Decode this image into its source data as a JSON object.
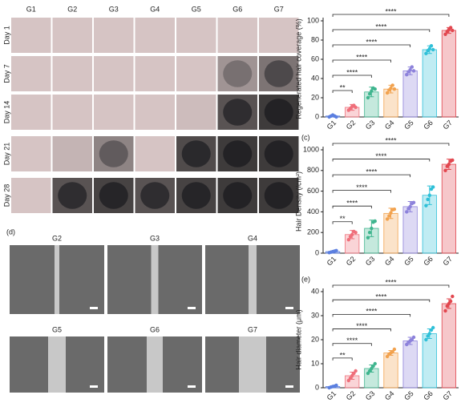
{
  "photo_grid": {
    "columns": [
      "G1",
      "G2",
      "G3",
      "G4",
      "G5",
      "G6",
      "G7"
    ],
    "rows": [
      "Day 1",
      "Day 7",
      "Day 14",
      "Day 21",
      "Day 28"
    ]
  },
  "sem_panel": {
    "label": "(d)",
    "images": [
      "G2",
      "G3",
      "G4",
      "G5",
      "G6",
      "G7"
    ]
  },
  "chart_data": [
    {
      "type": "bar",
      "ylabel": "Regenerated hair coverage (%)",
      "categories": [
        "G1",
        "G2",
        "G3",
        "G4",
        "G5",
        "G6",
        "G7"
      ],
      "values": [
        1,
        10,
        26,
        29,
        48,
        70,
        90
      ],
      "errors": [
        1,
        3,
        5,
        4,
        4,
        4,
        3
      ],
      "points": [
        [
          0,
          1,
          2,
          1,
          0
        ],
        [
          7,
          9,
          11,
          12,
          10
        ],
        [
          20,
          24,
          27,
          30,
          29
        ],
        [
          25,
          28,
          30,
          33,
          29
        ],
        [
          44,
          47,
          49,
          52,
          48
        ],
        [
          66,
          69,
          71,
          74,
          70
        ],
        [
          86,
          89,
          91,
          93,
          90
        ]
      ],
      "colors": [
        "#5b7fe0",
        "#ef6f7a",
        "#3fb58e",
        "#f2a24e",
        "#8d82db",
        "#2fc0d8",
        "#e2474f"
      ],
      "ylim": [
        0,
        100
      ],
      "yticks": [
        0,
        20,
        40,
        60,
        80,
        100
      ],
      "comparisons": [
        {
          "from": "G1",
          "to": "G2",
          "label": "**"
        },
        {
          "from": "G1",
          "to": "G3",
          "label": "****"
        },
        {
          "from": "G1",
          "to": "G4",
          "label": "****"
        },
        {
          "from": "G1",
          "to": "G5",
          "label": "****"
        },
        {
          "from": "G1",
          "to": "G6",
          "label": "****"
        },
        {
          "from": "G1",
          "to": "G7",
          "label": "****"
        }
      ]
    },
    {
      "type": "bar",
      "panel_label": "(c)",
      "ylabel": "Hair Density (/cm²)",
      "categories": [
        "G1",
        "G2",
        "G3",
        "G4",
        "G5",
        "G6",
        "G7"
      ],
      "values": [
        15,
        180,
        240,
        385,
        450,
        560,
        860
      ],
      "errors": [
        8,
        40,
        80,
        50,
        50,
        90,
        50
      ],
      "points": [
        [
          5,
          10,
          15,
          20,
          25
        ],
        [
          130,
          160,
          180,
          210,
          200
        ],
        [
          150,
          200,
          240,
          300,
          310
        ],
        [
          330,
          360,
          390,
          420,
          425
        ],
        [
          400,
          430,
          450,
          480,
          490
        ],
        [
          460,
          520,
          560,
          620,
          640
        ],
        [
          800,
          840,
          860,
          890,
          900
        ]
      ],
      "colors": [
        "#5b7fe0",
        "#ef6f7a",
        "#3fb58e",
        "#f2a24e",
        "#8d82db",
        "#2fc0d8",
        "#e2474f"
      ],
      "ylim": [
        0,
        1000
      ],
      "yticks": [
        0,
        200,
        400,
        600,
        800,
        1000
      ],
      "comparisons": [
        {
          "from": "G1",
          "to": "G2",
          "label": "**"
        },
        {
          "from": "G1",
          "to": "G3",
          "label": "****"
        },
        {
          "from": "G1",
          "to": "G4",
          "label": "****"
        },
        {
          "from": "G1",
          "to": "G5",
          "label": "****"
        },
        {
          "from": "G1",
          "to": "G6",
          "label": "****"
        },
        {
          "from": "G1",
          "to": "G7",
          "label": "****"
        }
      ]
    },
    {
      "type": "bar",
      "panel_label": "(e)",
      "ylabel": "Hair diameter (μm)",
      "categories": [
        "G1",
        "G2",
        "G3",
        "G4",
        "G5",
        "G6",
        "G7"
      ],
      "values": [
        0.5,
        5,
        8,
        14.5,
        19.5,
        22.5,
        35
      ],
      "errors": [
        0.3,
        1.5,
        1.5,
        1,
        1.5,
        2,
        2
      ],
      "points": [
        [
          0,
          0.3,
          0.5,
          0.7,
          1
        ],
        [
          3,
          4,
          5,
          6,
          7
        ],
        [
          6,
          7,
          8,
          9,
          10
        ],
        [
          13,
          14,
          14.5,
          15,
          16
        ],
        [
          18,
          19,
          19.5,
          20,
          21
        ],
        [
          20,
          21.5,
          22.5,
          24,
          25
        ],
        [
          32,
          34,
          35,
          36,
          38
        ]
      ],
      "colors": [
        "#5b7fe0",
        "#ef6f7a",
        "#3fb58e",
        "#f2a24e",
        "#8d82db",
        "#2fc0d8",
        "#e2474f"
      ],
      "ylim": [
        0,
        40
      ],
      "yticks": [
        0,
        10,
        20,
        30,
        40
      ],
      "comparisons": [
        {
          "from": "G1",
          "to": "G2",
          "label": "**"
        },
        {
          "from": "G1",
          "to": "G3",
          "label": "****"
        },
        {
          "from": "G1",
          "to": "G4",
          "label": "****"
        },
        {
          "from": "G1",
          "to": "G5",
          "label": "****"
        },
        {
          "from": "G1",
          "to": "G6",
          "label": "****"
        },
        {
          "from": "G1",
          "to": "G7",
          "label": "****"
        }
      ]
    }
  ]
}
